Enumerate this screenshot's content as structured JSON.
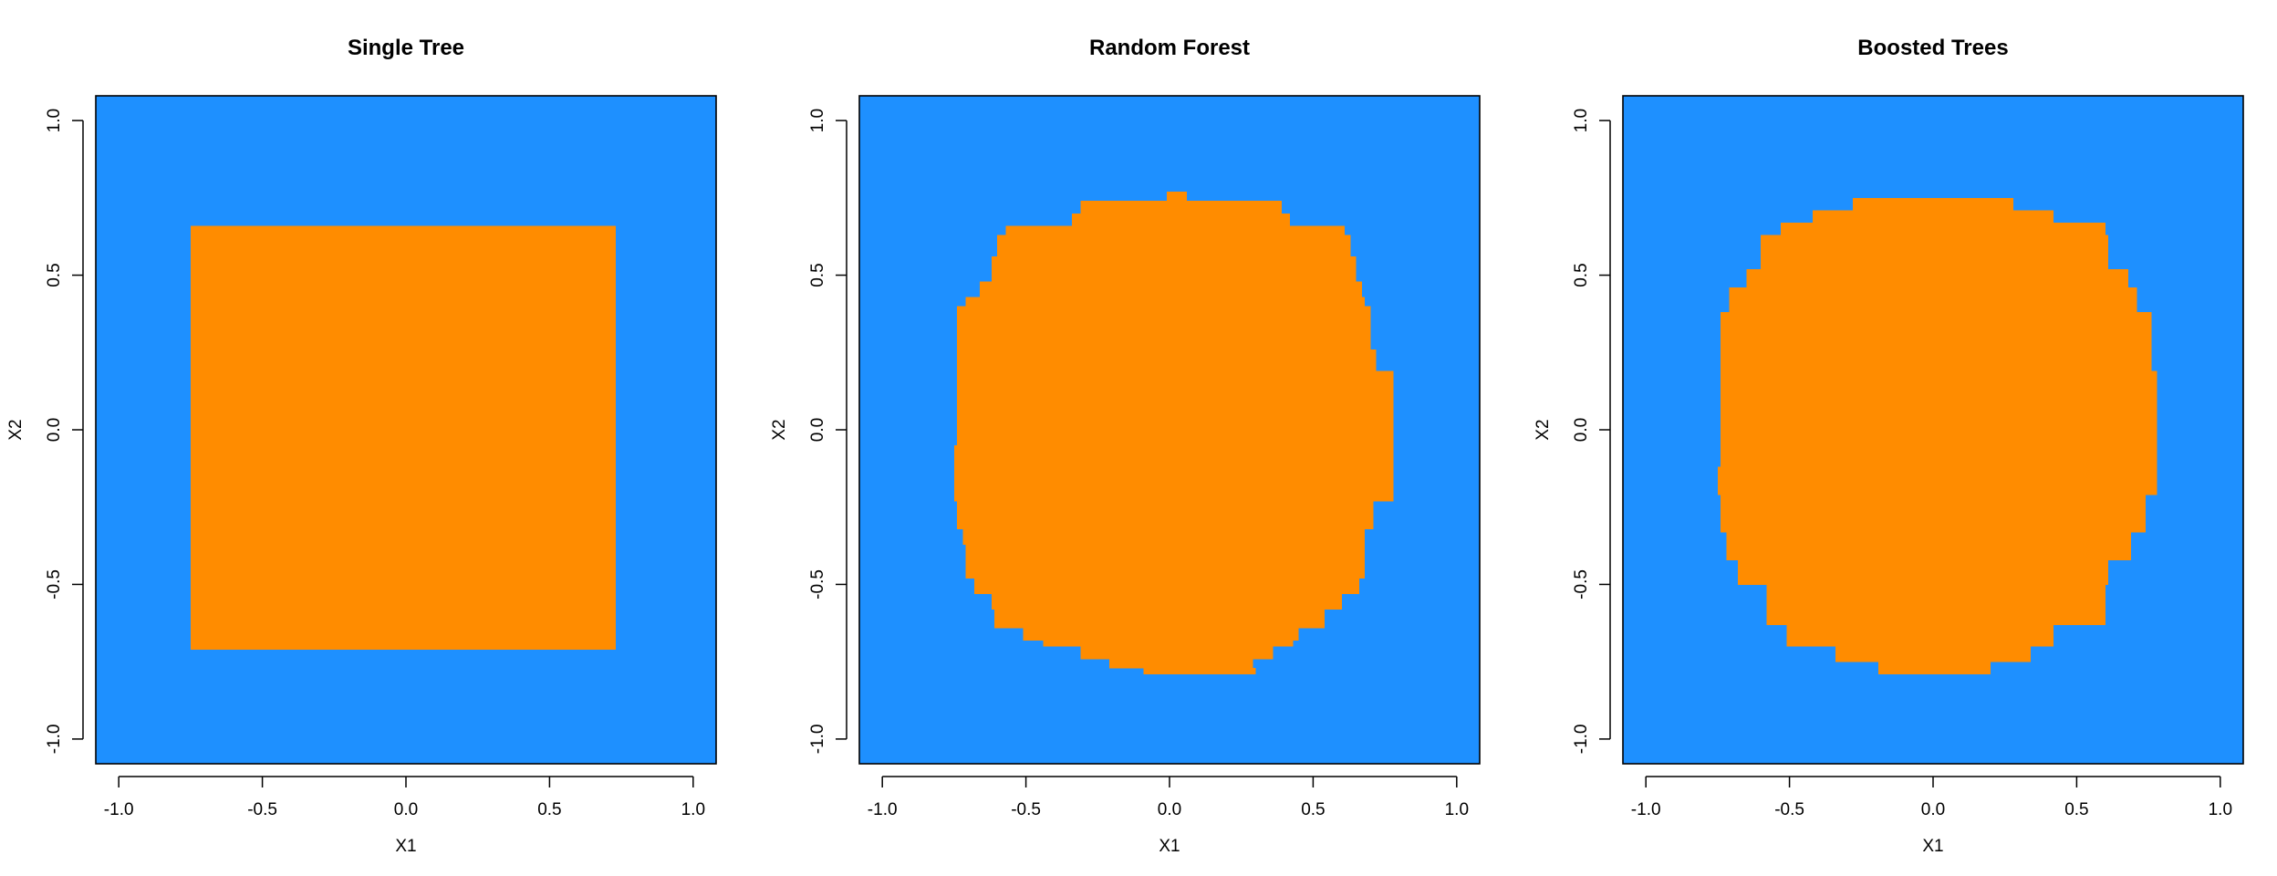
{
  "colors": {
    "class_0": "#1E90FF",
    "class_1": "#FF8C00",
    "frame": "#000000",
    "background": "#FFFFFF"
  },
  "chart_data": [
    {
      "type": "heatmap",
      "title": "Single Tree",
      "xlabel": "X1",
      "ylabel": "X2",
      "xlim": [
        -1.08,
        1.08
      ],
      "ylim": [
        -1.08,
        1.08
      ],
      "xticks": [
        "-1.0",
        "-0.5",
        "0.0",
        "0.5",
        "1.0"
      ],
      "yticks": [
        "-1.0",
        "-0.5",
        "0.0",
        "0.5",
        "1.0"
      ],
      "grid": false,
      "background_class": "class_0",
      "region_class": "class_1",
      "region": [
        [
          -0.75,
          0.73,
          -0.71,
          0.66
        ]
      ]
    },
    {
      "type": "heatmap",
      "title": "Random Forest",
      "xlabel": "X1",
      "ylabel": "X2",
      "xlim": [
        -1.08,
        1.08
      ],
      "ylim": [
        -1.08,
        1.08
      ],
      "xticks": [
        "-1.0",
        "-0.5",
        "0.0",
        "0.5",
        "1.0"
      ],
      "yticks": [
        "-1.0",
        "-0.5",
        "0.0",
        "0.5",
        "1.0"
      ],
      "grid": false,
      "background_class": "class_0",
      "region_class": "class_1",
      "region": [
        [
          -0.01,
          0.06,
          0.74,
          0.77
        ],
        [
          -0.31,
          0.39,
          0.7,
          0.74
        ],
        [
          -0.34,
          0.42,
          0.66,
          0.7
        ],
        [
          -0.57,
          0.61,
          0.63,
          0.66
        ],
        [
          -0.6,
          0.63,
          0.56,
          0.63
        ],
        [
          -0.62,
          0.65,
          0.48,
          0.56
        ],
        [
          -0.66,
          0.67,
          0.43,
          0.48
        ],
        [
          -0.71,
          0.68,
          0.4,
          0.43
        ],
        [
          -0.74,
          0.7,
          0.26,
          0.4
        ],
        [
          -0.74,
          0.72,
          0.19,
          0.26
        ],
        [
          -0.74,
          0.78,
          -0.05,
          0.19
        ],
        [
          -0.75,
          0.78,
          -0.23,
          -0.05
        ],
        [
          -0.74,
          0.71,
          -0.32,
          -0.23
        ],
        [
          -0.72,
          0.68,
          -0.37,
          -0.32
        ],
        [
          -0.71,
          0.68,
          -0.48,
          -0.37
        ],
        [
          -0.68,
          0.66,
          -0.53,
          -0.48
        ],
        [
          -0.62,
          0.6,
          -0.58,
          -0.53
        ],
        [
          -0.61,
          0.54,
          -0.64,
          -0.58
        ],
        [
          -0.51,
          0.45,
          -0.68,
          -0.64
        ],
        [
          -0.44,
          0.43,
          -0.7,
          -0.68
        ],
        [
          -0.31,
          0.36,
          -0.74,
          -0.7
        ],
        [
          -0.21,
          0.29,
          -0.77,
          -0.74
        ],
        [
          -0.09,
          0.3,
          -0.79,
          -0.77
        ]
      ]
    },
    {
      "type": "heatmap",
      "title": "Boosted Trees",
      "xlabel": "X1",
      "ylabel": "X2",
      "xlim": [
        -1.08,
        1.08
      ],
      "ylim": [
        -1.08,
        1.08
      ],
      "xticks": [
        "-1.0",
        "-0.5",
        "0.0",
        "0.5",
        "1.0"
      ],
      "yticks": [
        "-1.0",
        "-0.5",
        "0.0",
        "0.5",
        "1.0"
      ],
      "grid": false,
      "background_class": "class_0",
      "region_class": "class_1",
      "region": [
        [
          -0.28,
          0.28,
          0.71,
          0.75
        ],
        [
          -0.42,
          0.42,
          0.67,
          0.71
        ],
        [
          -0.53,
          0.6,
          0.63,
          0.67
        ],
        [
          -0.6,
          0.61,
          0.52,
          0.63
        ],
        [
          -0.65,
          0.68,
          0.46,
          0.52
        ],
        [
          -0.71,
          0.71,
          0.38,
          0.46
        ],
        [
          -0.74,
          0.76,
          0.19,
          0.38
        ],
        [
          -0.74,
          0.78,
          -0.12,
          0.19
        ],
        [
          -0.75,
          0.78,
          -0.21,
          -0.12
        ],
        [
          -0.74,
          0.74,
          -0.33,
          -0.21
        ],
        [
          -0.72,
          0.69,
          -0.42,
          -0.33
        ],
        [
          -0.68,
          0.61,
          -0.5,
          -0.42
        ],
        [
          -0.58,
          0.6,
          -0.63,
          -0.5
        ],
        [
          -0.51,
          0.42,
          -0.7,
          -0.63
        ],
        [
          -0.34,
          0.34,
          -0.75,
          -0.7
        ],
        [
          -0.19,
          0.2,
          -0.79,
          -0.75
        ]
      ]
    }
  ]
}
